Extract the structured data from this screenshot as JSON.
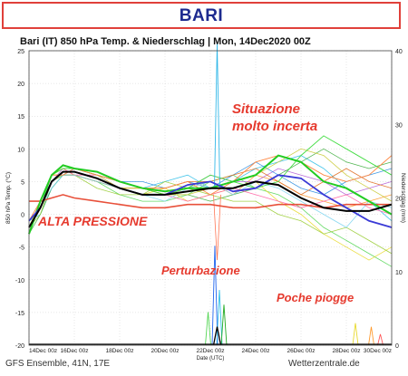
{
  "banner": {
    "title": "BARI"
  },
  "chart_data": {
    "type": "line",
    "title": "Bari  (IT)  850 hPa Temp. & Niederschlag | Mon, 14Dec2020 00Z",
    "xlabel": "Date (UTC)",
    "ylabel": "850 hPa Temp. (°C)",
    "y2label": "Niederschlag (mm)",
    "ylim": [
      -20,
      25
    ],
    "y2lim": [
      0,
      40
    ],
    "yticks": [
      -20,
      -15,
      -10,
      -5,
      0,
      5,
      10,
      15,
      20,
      25
    ],
    "y2ticks": [
      0,
      10,
      20,
      30,
      40
    ],
    "x_tick_labels": [
      "14Dec 00z",
      "16Dec 00z",
      "18Dec 00z",
      "20Dec 00z",
      "22Dec 00z",
      "24Dec 00z",
      "26Dec 00z",
      "28Dec 00z",
      "30Dec 00z"
    ],
    "x_days": [
      0,
      2,
      4,
      6,
      8,
      10,
      12,
      14,
      16
    ],
    "grid": true,
    "x": [
      0,
      0.5,
      1,
      1.5,
      2,
      3,
      4,
      5,
      6,
      7,
      8,
      9,
      10,
      11,
      12,
      13,
      14,
      15,
      16
    ],
    "mean_temp": [
      -2,
      1,
      5,
      6.5,
      6.5,
      5.5,
      4,
      3,
      3,
      3.5,
      4,
      4,
      5,
      4.5,
      2.5,
      1,
      0.5,
      0.5,
      1.5
    ],
    "members": [
      [
        -3,
        2,
        6,
        7,
        7,
        6,
        5,
        4,
        3,
        4,
        5,
        3,
        6,
        5,
        3,
        2,
        1,
        2,
        3
      ],
      [
        -1,
        0,
        4,
        6,
        7,
        6,
        5,
        4,
        5,
        6,
        4,
        5,
        7,
        8,
        9,
        7,
        4,
        2,
        -1
      ],
      [
        -2,
        1,
        5,
        6,
        6,
        5,
        3,
        2,
        2,
        3,
        5,
        6,
        4,
        3,
        1,
        -2,
        -4,
        -6,
        -8
      ],
      [
        -2,
        2,
        6,
        7,
        6,
        5,
        4,
        3,
        4,
        2,
        3,
        4,
        5,
        2,
        0,
        -3,
        -5,
        -7,
        -5
      ],
      [
        -1,
        1,
        5,
        7,
        7,
        6,
        4,
        3,
        3,
        4,
        6,
        5,
        5,
        7,
        6,
        5,
        3,
        4,
        5
      ],
      [
        -3,
        0,
        4,
        6,
        6,
        5,
        4,
        3,
        3,
        3,
        2,
        3,
        4,
        6,
        8,
        10,
        8,
        7,
        8
      ],
      [
        -2,
        1,
        6,
        7,
        6,
        6,
        5,
        4,
        3,
        2,
        3,
        4,
        3,
        2,
        1,
        2,
        3,
        1,
        0
      ],
      [
        -1,
        2,
        5,
        6,
        7,
        6,
        5,
        5,
        4,
        5,
        4,
        6,
        8,
        6,
        4,
        3,
        5,
        6,
        7
      ],
      [
        -2,
        0,
        5,
        6,
        6,
        4,
        3,
        3,
        5,
        4,
        3,
        2,
        2,
        0,
        -1,
        -3,
        -2,
        -4,
        -6
      ],
      [
        -2,
        1,
        6,
        6,
        6,
        5,
        4,
        4,
        4,
        5,
        5,
        6,
        7,
        5,
        3,
        5,
        7,
        5,
        4
      ],
      [
        -1,
        1,
        4,
        6,
        6,
        5,
        4,
        3,
        2,
        4,
        5,
        3,
        5,
        4,
        2,
        0,
        -2,
        2,
        1
      ],
      [
        -2,
        2,
        6,
        7,
        7,
        6,
        4,
        4,
        3,
        3,
        4,
        5,
        6,
        8,
        10,
        9,
        6,
        4,
        2
      ]
    ],
    "members_hi": [
      [
        -2,
        1,
        6,
        7,
        7,
        6,
        5,
        4,
        3,
        4,
        6,
        5,
        4,
        5,
        9,
        12,
        10,
        8,
        6
      ],
      [
        -1,
        2,
        6,
        6,
        7,
        6,
        5,
        4,
        4,
        5,
        3,
        5,
        8,
        9,
        8,
        6,
        5,
        6,
        9
      ]
    ],
    "operational": [
      -1,
      1,
      5,
      6.5,
      6.5,
      5.5,
      4,
      3,
      3,
      4.5,
      5,
      3.5,
      4,
      6,
      5.5,
      3,
      1,
      -1,
      -2
    ],
    "control": [
      -3,
      2,
      6,
      7.5,
      7,
      6.5,
      5,
      4,
      3.5,
      4,
      4,
      5,
      6,
      9,
      8,
      5,
      4,
      2,
      0
    ],
    "climatology": [
      2,
      2,
      2.5,
      3,
      2.5,
      2,
      1.5,
      1,
      1,
      1.5,
      1.5,
      1,
      1,
      1.5,
      1.5,
      1,
      1.5,
      1.5,
      1.5
    ],
    "precip_peaks": [
      {
        "day": 8.2,
        "value": 13.5
      },
      {
        "day": 8.4,
        "value": 7.5
      },
      {
        "day": 7.9,
        "value": 4.5
      },
      {
        "day": 8.6,
        "value": 5.5
      },
      {
        "day": 14.4,
        "value": 3
      },
      {
        "day": 15.1,
        "value": 2.5
      },
      {
        "day": 15.5,
        "value": 1.5
      }
    ],
    "precip_mean_peaks": [
      {
        "day": 8.3,
        "value": 2.5
      }
    ],
    "temp_spike": {
      "day": 8.3,
      "value": 26
    },
    "temp_dip": {
      "day": 8.3,
      "value": -7
    },
    "annotations": [
      {
        "text": "Situazione"
      },
      {
        "text": "molto incerta"
      },
      {
        "text": "ALTA PRESSIONE"
      },
      {
        "text": "Perturbazione"
      },
      {
        "text": "Poche piogge"
      }
    ]
  },
  "footer": {
    "model": "GFS Ensemble, 41N, 17E",
    "site": "Wetterzentrale.de"
  },
  "colors": {
    "banner_border": "#e0403a",
    "banner_text": "#1d2a8f",
    "annotation": "#e63a2e",
    "mean": "#000000",
    "operational": "#3a3ad6",
    "control": "#22cc22",
    "climatology": "#e8503a"
  }
}
